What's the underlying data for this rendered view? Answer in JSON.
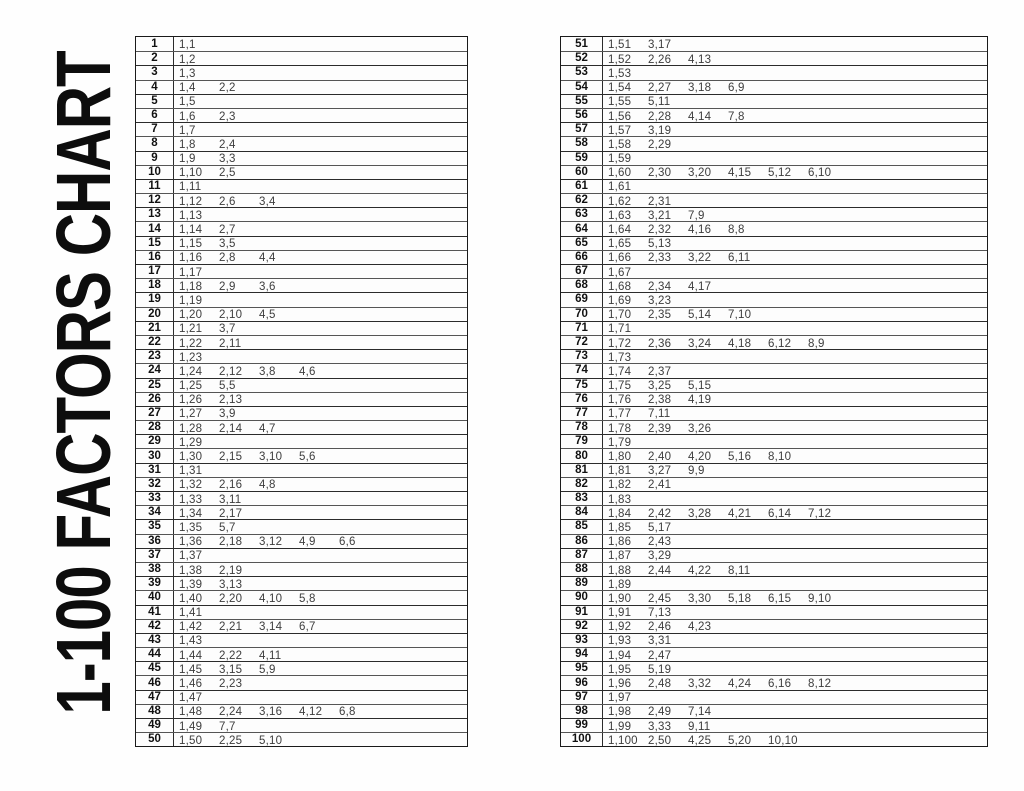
{
  "title": "1-100 FACTORS CHART",
  "tables": [
    {
      "name": "factors-1-50",
      "rows": [
        {
          "n": "1",
          "factors": [
            "1,1"
          ]
        },
        {
          "n": "2",
          "factors": [
            "1,2"
          ]
        },
        {
          "n": "3",
          "factors": [
            "1,3"
          ]
        },
        {
          "n": "4",
          "factors": [
            "1,4",
            "2,2"
          ]
        },
        {
          "n": "5",
          "factors": [
            "1,5"
          ]
        },
        {
          "n": "6",
          "factors": [
            "1,6",
            "2,3"
          ]
        },
        {
          "n": "7",
          "factors": [
            "1,7"
          ]
        },
        {
          "n": "8",
          "factors": [
            "1,8",
            "2,4"
          ]
        },
        {
          "n": "9",
          "factors": [
            "1,9",
            "3,3"
          ]
        },
        {
          "n": "10",
          "factors": [
            "1,10",
            "2,5"
          ]
        },
        {
          "n": "11",
          "factors": [
            "1,11"
          ]
        },
        {
          "n": "12",
          "factors": [
            "1,12",
            "2,6",
            "3,4"
          ]
        },
        {
          "n": "13",
          "factors": [
            "1,13"
          ]
        },
        {
          "n": "14",
          "factors": [
            "1,14",
            "2,7"
          ]
        },
        {
          "n": "15",
          "factors": [
            "1,15",
            "3,5"
          ]
        },
        {
          "n": "16",
          "factors": [
            "1,16",
            "2,8",
            "4,4"
          ]
        },
        {
          "n": "17",
          "factors": [
            "1,17"
          ]
        },
        {
          "n": "18",
          "factors": [
            "1,18",
            "2,9",
            "3,6"
          ]
        },
        {
          "n": "19",
          "factors": [
            "1,19"
          ]
        },
        {
          "n": "20",
          "factors": [
            "1,20",
            "2,10",
            "4,5"
          ]
        },
        {
          "n": "21",
          "factors": [
            "1,21",
            "3,7"
          ]
        },
        {
          "n": "22",
          "factors": [
            "1,22",
            "2,11"
          ]
        },
        {
          "n": "23",
          "factors": [
            "1,23"
          ]
        },
        {
          "n": "24",
          "factors": [
            "1,24",
            "2,12",
            "3,8",
            "4,6"
          ]
        },
        {
          "n": "25",
          "factors": [
            "1,25",
            "5,5"
          ]
        },
        {
          "n": "26",
          "factors": [
            "1,26",
            "2,13"
          ]
        },
        {
          "n": "27",
          "factors": [
            "1,27",
            "3,9"
          ]
        },
        {
          "n": "28",
          "factors": [
            "1,28",
            "2,14",
            "4,7"
          ]
        },
        {
          "n": "29",
          "factors": [
            "1,29"
          ]
        },
        {
          "n": "30",
          "factors": [
            "1,30",
            "2,15",
            "3,10",
            "5,6"
          ]
        },
        {
          "n": "31",
          "factors": [
            "1,31"
          ]
        },
        {
          "n": "32",
          "factors": [
            "1,32",
            "2,16",
            "4,8"
          ]
        },
        {
          "n": "33",
          "factors": [
            "1,33",
            "3,11"
          ]
        },
        {
          "n": "34",
          "factors": [
            "1,34",
            "2,17"
          ]
        },
        {
          "n": "35",
          "factors": [
            "1,35",
            "5,7"
          ]
        },
        {
          "n": "36",
          "factors": [
            "1,36",
            "2,18",
            "3,12",
            "4,9",
            "6,6"
          ]
        },
        {
          "n": "37",
          "factors": [
            "1,37"
          ]
        },
        {
          "n": "38",
          "factors": [
            "1,38",
            "2,19"
          ]
        },
        {
          "n": "39",
          "factors": [
            "1,39",
            "3,13"
          ]
        },
        {
          "n": "40",
          "factors": [
            "1,40",
            "2,20",
            "4,10",
            "5,8"
          ]
        },
        {
          "n": "41",
          "factors": [
            "1,41"
          ]
        },
        {
          "n": "42",
          "factors": [
            "1,42",
            "2,21",
            "3,14",
            "6,7"
          ]
        },
        {
          "n": "43",
          "factors": [
            "1,43"
          ]
        },
        {
          "n": "44",
          "factors": [
            "1,44",
            "2,22",
            "4,11"
          ]
        },
        {
          "n": "45",
          "factors": [
            "1,45",
            "3,15",
            "5,9"
          ]
        },
        {
          "n": "46",
          "factors": [
            "1,46",
            "2,23"
          ]
        },
        {
          "n": "47",
          "factors": [
            "1,47"
          ]
        },
        {
          "n": "48",
          "factors": [
            "1,48",
            "2,24",
            "3,16",
            "4,12",
            "6,8"
          ]
        },
        {
          "n": "49",
          "factors": [
            "1,49",
            "7,7"
          ]
        },
        {
          "n": "50",
          "factors": [
            "1,50",
            "2,25",
            "5,10"
          ]
        }
      ]
    },
    {
      "name": "factors-51-100",
      "rows": [
        {
          "n": "51",
          "factors": [
            "1,51",
            "3,17"
          ]
        },
        {
          "n": "52",
          "factors": [
            "1,52",
            "2,26",
            "4,13"
          ]
        },
        {
          "n": "53",
          "factors": [
            "1,53"
          ]
        },
        {
          "n": "54",
          "factors": [
            "1,54",
            "2,27",
            "3,18",
            "6,9"
          ]
        },
        {
          "n": "55",
          "factors": [
            "1,55",
            "5,11"
          ]
        },
        {
          "n": "56",
          "factors": [
            "1,56",
            "2,28",
            "4,14",
            "7,8"
          ]
        },
        {
          "n": "57",
          "factors": [
            "1,57",
            "3,19"
          ]
        },
        {
          "n": "58",
          "factors": [
            "1,58",
            "2,29"
          ]
        },
        {
          "n": "59",
          "factors": [
            "1,59"
          ]
        },
        {
          "n": "60",
          "factors": [
            "1,60",
            "2,30",
            "3,20",
            "4,15",
            "5,12",
            "6,10"
          ]
        },
        {
          "n": "61",
          "factors": [
            "1,61"
          ]
        },
        {
          "n": "62",
          "factors": [
            "1,62",
            "2,31"
          ]
        },
        {
          "n": "63",
          "factors": [
            "1,63",
            "3,21",
            "7,9"
          ]
        },
        {
          "n": "64",
          "factors": [
            "1,64",
            "2,32",
            "4,16",
            "8,8"
          ]
        },
        {
          "n": "65",
          "factors": [
            "1,65",
            "5,13"
          ]
        },
        {
          "n": "66",
          "factors": [
            "1,66",
            "2,33",
            "3,22",
            "6,11"
          ]
        },
        {
          "n": "67",
          "factors": [
            "1,67"
          ]
        },
        {
          "n": "68",
          "factors": [
            "1,68",
            "2,34",
            "4,17"
          ]
        },
        {
          "n": "69",
          "factors": [
            "1,69",
            "3,23"
          ]
        },
        {
          "n": "70",
          "factors": [
            "1,70",
            "2,35",
            "5,14",
            "7,10"
          ]
        },
        {
          "n": "71",
          "factors": [
            "1,71"
          ]
        },
        {
          "n": "72",
          "factors": [
            "1,72",
            "2,36",
            "3,24",
            "4,18",
            "6,12",
            "8,9"
          ]
        },
        {
          "n": "73",
          "factors": [
            "1,73"
          ]
        },
        {
          "n": "74",
          "factors": [
            "1,74",
            "2,37"
          ]
        },
        {
          "n": "75",
          "factors": [
            "1,75",
            "3,25",
            "5,15"
          ]
        },
        {
          "n": "76",
          "factors": [
            "1,76",
            "2,38",
            "4,19"
          ]
        },
        {
          "n": "77",
          "factors": [
            "1,77",
            "7,11"
          ]
        },
        {
          "n": "78",
          "factors": [
            "1,78",
            "2,39",
            "3,26"
          ]
        },
        {
          "n": "79",
          "factors": [
            "1,79"
          ]
        },
        {
          "n": "80",
          "factors": [
            "1,80",
            "2,40",
            "4,20",
            "5,16",
            "8,10"
          ]
        },
        {
          "n": "81",
          "factors": [
            "1,81",
            "3,27",
            "9,9"
          ]
        },
        {
          "n": "82",
          "factors": [
            "1,82",
            "2,41"
          ]
        },
        {
          "n": "83",
          "factors": [
            "1,83"
          ]
        },
        {
          "n": "84",
          "factors": [
            "1,84",
            "2,42",
            "3,28",
            "4,21",
            "6,14",
            "7,12"
          ]
        },
        {
          "n": "85",
          "factors": [
            "1,85",
            "5,17"
          ]
        },
        {
          "n": "86",
          "factors": [
            "1,86",
            "2,43"
          ]
        },
        {
          "n": "87",
          "factors": [
            "1,87",
            "3,29"
          ]
        },
        {
          "n": "88",
          "factors": [
            "1,88",
            "2,44",
            "4,22",
            "8,11"
          ]
        },
        {
          "n": "89",
          "factors": [
            "1,89"
          ]
        },
        {
          "n": "90",
          "factors": [
            "1,90",
            "2,45",
            "3,30",
            "5,18",
            "6,15",
            "9,10"
          ]
        },
        {
          "n": "91",
          "factors": [
            "1,91",
            "7,13"
          ]
        },
        {
          "n": "92",
          "factors": [
            "1,92",
            "2,46",
            "4,23"
          ]
        },
        {
          "n": "93",
          "factors": [
            "1,93",
            "3,31"
          ]
        },
        {
          "n": "94",
          "factors": [
            "1,94",
            "2,47"
          ]
        },
        {
          "n": "95",
          "factors": [
            "1,95",
            "5,19"
          ]
        },
        {
          "n": "96",
          "factors": [
            "1,96",
            "2,48",
            "3,32",
            "4,24",
            "6,16",
            "8,12"
          ]
        },
        {
          "n": "97",
          "factors": [
            "1,97"
          ]
        },
        {
          "n": "98",
          "factors": [
            "1,98",
            "2,49",
            "7,14"
          ]
        },
        {
          "n": "99",
          "factors": [
            "1,99",
            "3,33",
            "9,11"
          ]
        },
        {
          "n": "100",
          "factors": [
            "1,100",
            "2,50",
            "4,25",
            "5,20",
            "10,10"
          ]
        }
      ]
    }
  ]
}
